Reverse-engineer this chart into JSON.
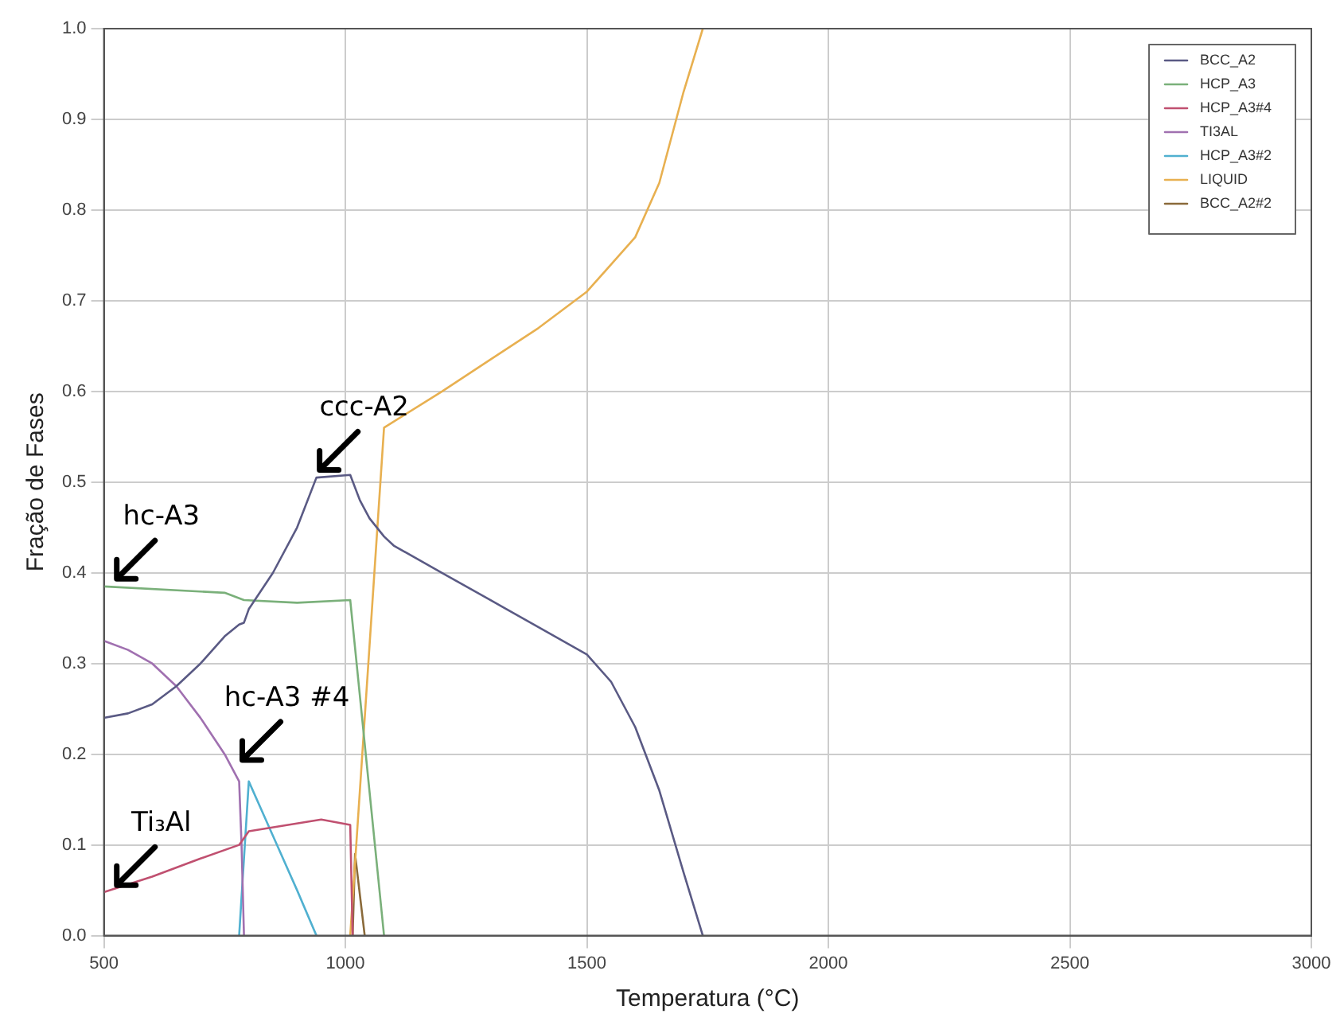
{
  "chart_data": {
    "type": "line",
    "xlabel": "Temperatura (°C)",
    "ylabel": "Fração de Fases",
    "xlim": [
      500,
      3000
    ],
    "xticks": [
      500,
      1000,
      1500,
      2000,
      2500,
      3000
    ],
    "ylim": [
      0,
      1
    ],
    "yticks": [
      {
        "value": 0,
        "label": "0.0"
      },
      0.1,
      0.2,
      0.3,
      0.4,
      0.5,
      0.6,
      0.7,
      0.8,
      0.9,
      {
        "value": 1,
        "label": "1.0"
      }
    ],
    "grid": true,
    "legend": "top right",
    "marker": "none",
    "line_style": "solid",
    "series": [
      {
        "name": "BCC_A2",
        "color": "#5a5a84",
        "x": [
          500,
          550,
          600,
          650,
          700,
          750,
          780,
          790,
          800,
          850,
          900,
          940,
          1010,
          1030,
          1050,
          1080,
          1100,
          1200,
          1300,
          1400,
          1500,
          1550,
          1600,
          1650,
          1700,
          1740
        ],
        "values": [
          0.24,
          0.245,
          0.255,
          0.275,
          0.3,
          0.33,
          0.343,
          0.345,
          0.36,
          0.4,
          0.45,
          0.505,
          0.508,
          0.48,
          0.46,
          0.44,
          0.43,
          0.4,
          0.37,
          0.34,
          0.31,
          0.28,
          0.23,
          0.16,
          0.07,
          0
        ]
      },
      {
        "name": "HCP_A3",
        "color": "#7ab07a",
        "x": [
          500,
          750,
          790,
          900,
          1010,
          1080
        ],
        "values": [
          0.385,
          0.378,
          0.37,
          0.367,
          0.37,
          0
        ]
      },
      {
        "name": "HCP_A3#4",
        "color": "#c05070",
        "x": [
          500,
          600,
          700,
          780,
          800,
          950,
          1010,
          1015
        ],
        "values": [
          0.048,
          0.065,
          0.085,
          0.1,
          0.115,
          0.128,
          0.122,
          0
        ]
      },
      {
        "name": "TI3AL",
        "color": "#a070b0",
        "x": [
          500,
          550,
          600,
          650,
          700,
          750,
          780,
          785,
          790
        ],
        "values": [
          0.325,
          0.315,
          0.3,
          0.275,
          0.24,
          0.2,
          0.17,
          0.1,
          0
        ]
      },
      {
        "name": "HCP_A3#2",
        "color": "#50b0d0",
        "x": [
          780,
          800,
          850,
          900,
          940
        ],
        "values": [
          0,
          0.17,
          0.11,
          0.05,
          0
        ]
      },
      {
        "name": "LIQUID",
        "color": "#e8b050",
        "x": [
          1010,
          1080,
          1200,
          1300,
          1400,
          1500,
          1600,
          1650,
          1700,
          1740
        ],
        "values": [
          0,
          0.56,
          0.6,
          0.635,
          0.67,
          0.71,
          0.77,
          0.83,
          0.93,
          1.0
        ]
      },
      {
        "name": "BCC_A2#2",
        "color": "#8a6a3a",
        "x": [
          1015,
          1020,
          1040
        ],
        "values": [
          0,
          0.09,
          0
        ]
      }
    ],
    "annotations": [
      {
        "text": "ccc-A2",
        "x": 940,
        "y": 0.51
      },
      {
        "text": "hc-A3",
        "x": 520,
        "y": 0.39
      },
      {
        "text": "hc-A3 #4",
        "x": 780,
        "y": 0.19
      },
      {
        "text": "Ti₃Al",
        "x": 520,
        "y": 0.052
      }
    ]
  }
}
